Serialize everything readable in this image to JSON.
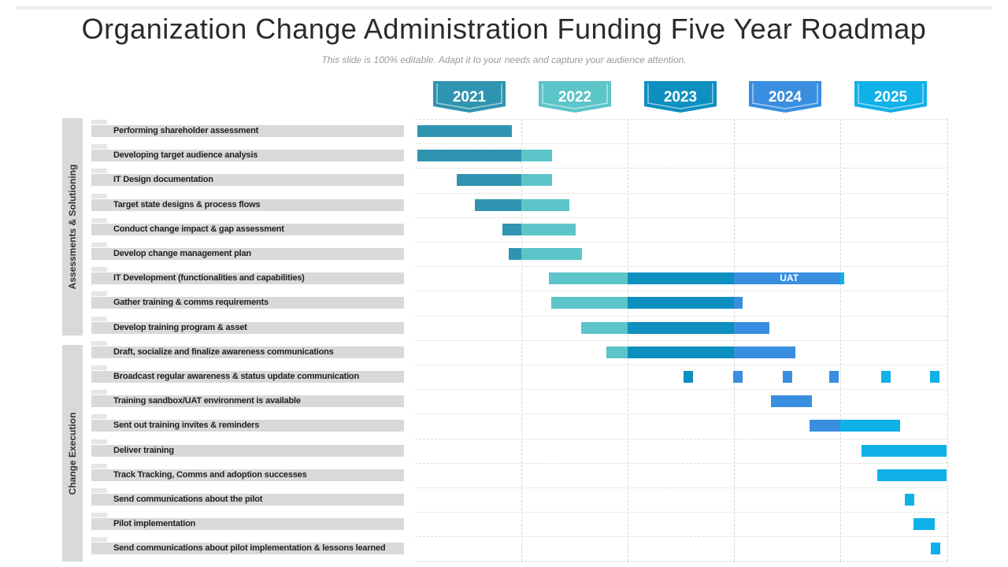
{
  "title": "Organization Change Administration Funding Five Year Roadmap",
  "subtitle": "This slide is 100% editable. Adapt it to your needs and capture your audience attention.",
  "years": [
    "2021",
    "2022",
    "2023",
    "2024",
    "2025"
  ],
  "colors": {
    "y2021": "#2e94b0",
    "y2022": "#5bc5c9",
    "y2023": "#0d8fbf",
    "y2024": "#3a8ee0",
    "y2025": "#10b0e8",
    "row_band": "#d9d9d9"
  },
  "groups": [
    {
      "label": "Assessments  & Solutioning",
      "rows": 9
    },
    {
      "label": "Change Execution",
      "rows": 9
    }
  ],
  "tasks": [
    "Performing shareholder assessment",
    "Developing target audience analysis",
    "IT Design documentation",
    "Target state designs & process flows",
    "Conduct change impact & gap assessment",
    "Develop change management plan",
    "IT Development (functionalities and capabilities)",
    "Gather training & comms requirements",
    "Develop training program & asset",
    "Draft, socialize and finalize awareness communications",
    "Broadcast regular awareness & status update communication",
    "Training sandbox/UAT environment is available",
    "Sent out training invites & reminders",
    "Deliver training",
    "Track Tracking, Comms and adoption successes",
    "Send communications about the pilot",
    "Pilot implementation",
    "Send communications about pilot implementation & lessons learned"
  ],
  "bar_label_uat": "UAT",
  "chart_data": {
    "type": "gantt",
    "unit": "years from start of 2021",
    "years": [
      "2021",
      "2022",
      "2023",
      "2024",
      "2025"
    ],
    "tasks": [
      {
        "task": "Performing shareholder assessment",
        "start": 0.02,
        "end": 0.91
      },
      {
        "task": "Developing target audience analysis",
        "start": 0.02,
        "end": 1.29
      },
      {
        "task": "IT Design documentation",
        "start": 0.39,
        "end": 1.29
      },
      {
        "task": "Target state designs & process flows",
        "start": 0.56,
        "end": 1.45
      },
      {
        "task": "Conduct change impact & gap assessment",
        "start": 0.82,
        "end": 1.51
      },
      {
        "task": "Develop change management plan",
        "start": 0.88,
        "end": 1.57
      },
      {
        "task": "IT Development (functionalities and capabilities)",
        "start": 1.26,
        "end": 4.04,
        "label": "UAT",
        "label_from": 3.0
      },
      {
        "task": "Gather training & comms requirements",
        "start": 1.28,
        "end": 3.08
      },
      {
        "task": "Develop training program & asset",
        "start": 1.56,
        "end": 3.33
      },
      {
        "task": "Draft, socialize and finalize awareness communications",
        "start": 1.8,
        "end": 3.58
      },
      {
        "task": "Broadcast regular awareness & status update communication",
        "milestones": [
          2.57,
          3.04,
          3.5,
          3.94,
          4.43,
          4.89
        ]
      },
      {
        "task": "Training sandbox/UAT environment is available",
        "start": 3.35,
        "end": 3.73
      },
      {
        "task": "Sent out training invites & reminders",
        "start": 3.71,
        "end": 4.56
      },
      {
        "task": "Deliver training",
        "start": 4.2,
        "end": 5.0
      },
      {
        "task": "Track Tracking, Comms and adoption successes",
        "start": 4.35,
        "end": 5.0
      },
      {
        "task": "Send communications about the pilot",
        "start": 4.61,
        "end": 4.7
      },
      {
        "task": "Pilot implementation",
        "start": 4.69,
        "end": 4.89
      },
      {
        "task": "Send communications about pilot implementation & lessons learned",
        "start": 4.85,
        "end": 4.94
      }
    ]
  }
}
